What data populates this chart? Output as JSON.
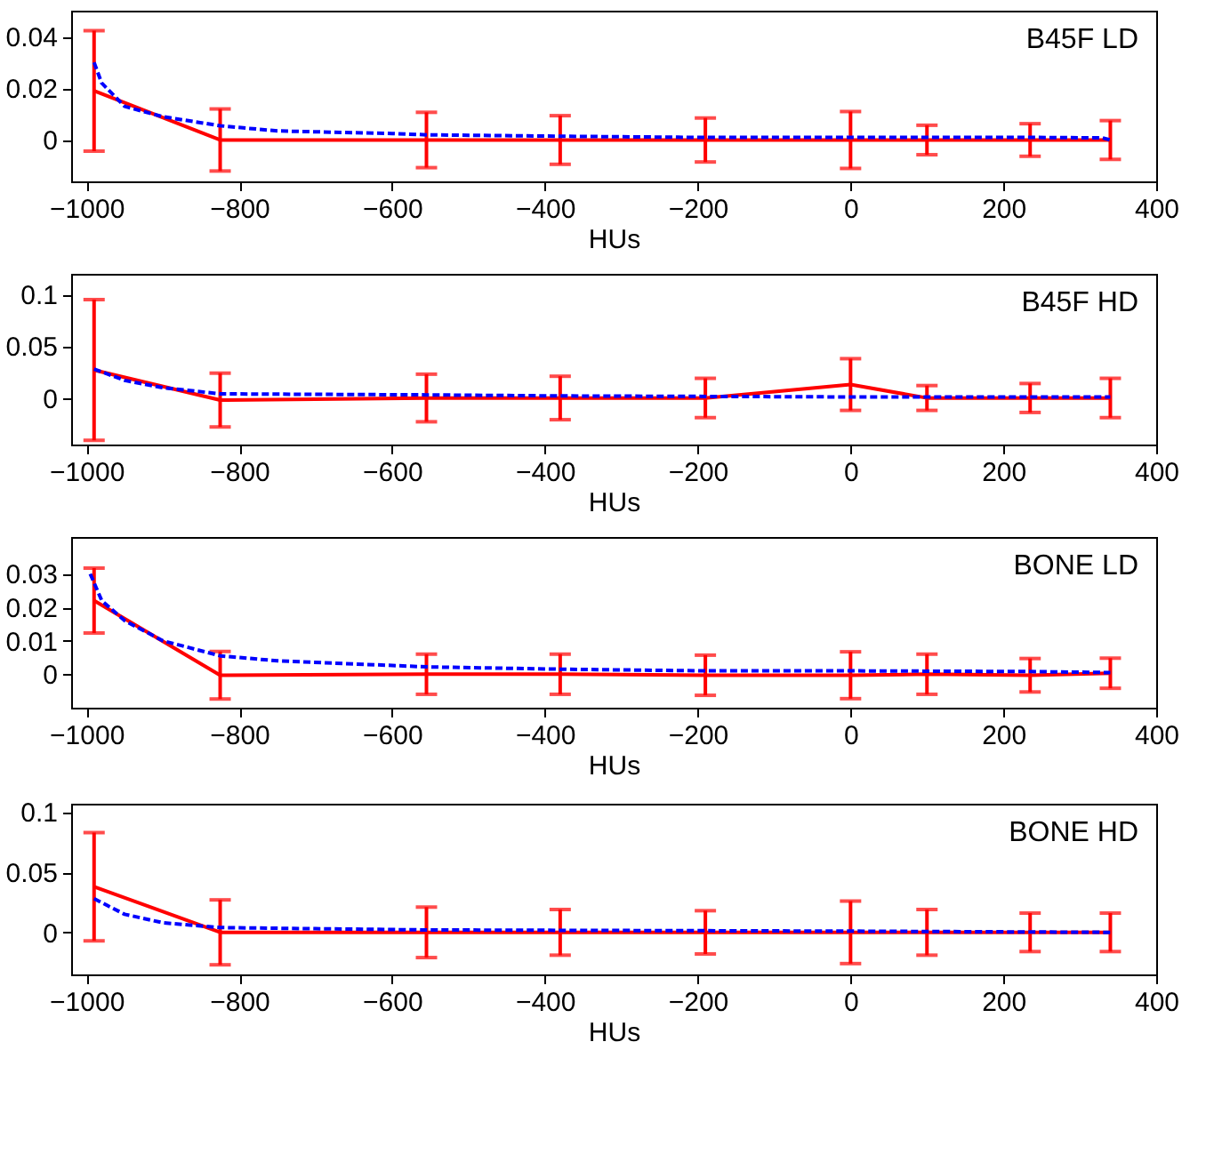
{
  "chart_data": [
    {
      "type": "line",
      "title": "B45F LD",
      "xlabel": "HUs",
      "x": [
        -990,
        -825,
        -555,
        -380,
        -190,
        0,
        100,
        235,
        340
      ],
      "xlim": [
        -1020,
        400
      ],
      "xticks": [
        -1000,
        -800,
        -600,
        -400,
        -200,
        0,
        200,
        400
      ],
      "ylim": [
        -0.016,
        0.05
      ],
      "yticks": [
        0,
        0.02,
        0.04
      ],
      "grid": false,
      "series": [
        {
          "type": "line",
          "color": "#0000ff",
          "line_style": "dashed",
          "x": [
            -990,
            -980,
            -950,
            -900,
            -825,
            -750,
            -600,
            -555,
            -400,
            -200,
            0,
            100,
            235,
            330,
            340
          ],
          "values": [
            0.03,
            0.022,
            0.013,
            0.009,
            0.0055,
            0.0035,
            0.0025,
            0.002,
            0.0015,
            0.001,
            0.001,
            0.001,
            0.001,
            0.0008,
            0
          ]
        },
        {
          "type": "line",
          "color": "#ff0000",
          "line_style": "solid",
          "values": [
            0.019,
            0,
            0,
            0,
            0,
            0,
            0,
            0,
            0
          ],
          "errors": [
            0.0233,
            0.012,
            0.0107,
            0.0094,
            0.0085,
            0.011,
            0.0057,
            0.0063,
            0.0075
          ]
        }
      ]
    },
    {
      "type": "line",
      "title": "B45F HD",
      "xlabel": "HUs",
      "x": [
        -990,
        -825,
        -555,
        -380,
        -190,
        0,
        100,
        235,
        340
      ],
      "xlim": [
        -1020,
        400
      ],
      "xticks": [
        -1000,
        -800,
        -600,
        -400,
        -200,
        0,
        200,
        400
      ],
      "ylim": [
        -0.045,
        0.12
      ],
      "yticks": [
        0,
        0.05,
        0.1
      ],
      "grid": false,
      "series": [
        {
          "type": "line",
          "color": "#0000ff",
          "line_style": "dashed",
          "x": [
            -990,
            -950,
            -900,
            -825,
            -555,
            -380,
            0,
            340
          ],
          "values": [
            0.028,
            0.017,
            0.01,
            0.004,
            0.003,
            0.002,
            0.001,
            0.001
          ]
        },
        {
          "type": "line",
          "color": "#ff0000",
          "line_style": "solid",
          "values": [
            0.027,
            -0.002,
            0,
            0,
            0,
            0.013,
            0,
            0,
            0
          ],
          "errors": [
            0.068,
            0.026,
            0.023,
            0.021,
            0.019,
            0.025,
            0.012,
            0.014,
            0.019
          ]
        }
      ]
    },
    {
      "type": "line",
      "title": "BONE LD",
      "xlabel": "HUs",
      "x": [
        -990,
        -825,
        -555,
        -380,
        -190,
        0,
        100,
        235,
        340
      ],
      "xlim": [
        -1020,
        400
      ],
      "xticks": [
        -1000,
        -800,
        -600,
        -400,
        -200,
        0,
        200,
        400
      ],
      "ylim": [
        -0.01,
        0.041
      ],
      "yticks": [
        0,
        0.01,
        0.02,
        0.03
      ],
      "grid": false,
      "series": [
        {
          "type": "line",
          "color": "#0000ff",
          "line_style": "dashed",
          "x": [
            -995,
            -980,
            -950,
            -900,
            -825,
            -750,
            -555,
            -380,
            -190,
            0,
            235,
            340
          ],
          "values": [
            0.03,
            0.022,
            0.016,
            0.01,
            0.0055,
            0.004,
            0.0022,
            0.0015,
            0.001,
            0.001,
            0.0008,
            0.0005
          ]
        },
        {
          "type": "line",
          "color": "#ff0000",
          "line_style": "solid",
          "values": [
            0.022,
            -0.0003,
            0,
            0,
            -0.0003,
            -0.0003,
            0,
            -0.0003,
            0.0003
          ],
          "errors": [
            0.0097,
            0.0071,
            0.006,
            0.006,
            0.006,
            0.007,
            0.006,
            0.005,
            0.0045
          ]
        }
      ]
    },
    {
      "type": "line",
      "title": "BONE HD",
      "xlabel": "HUs",
      "x": [
        -990,
        -825,
        -555,
        -380,
        -190,
        0,
        100,
        235,
        340
      ],
      "xlim": [
        -1020,
        400
      ],
      "xticks": [
        -1000,
        -800,
        -600,
        -400,
        -200,
        0,
        200,
        400
      ],
      "ylim": [
        -0.035,
        0.107
      ],
      "yticks": [
        0,
        0.05,
        0.1
      ],
      "grid": false,
      "series": [
        {
          "type": "line",
          "color": "#0000ff",
          "line_style": "dashed",
          "x": [
            -990,
            -950,
            -900,
            -825,
            -700,
            -555,
            0,
            340
          ],
          "values": [
            0.028,
            0.015,
            0.008,
            0.004,
            0.003,
            0.002,
            0.001,
            0
          ]
        },
        {
          "type": "line",
          "color": "#ff0000",
          "line_style": "solid",
          "values": [
            0.038,
            0,
            0,
            0,
            0,
            0,
            0,
            0,
            0
          ],
          "errors": [
            0.045,
            0.027,
            0.021,
            0.019,
            0.018,
            0.026,
            0.019,
            0.016,
            0.016
          ]
        }
      ]
    }
  ]
}
